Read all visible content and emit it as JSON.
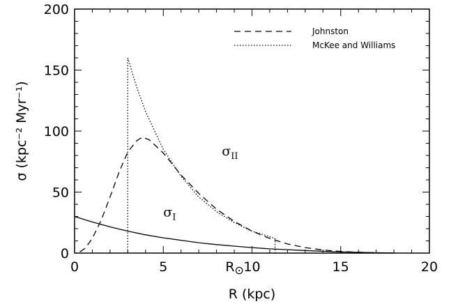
{
  "chart_data": {
    "type": "line",
    "xlabel": "R (kpc)",
    "ylabel": "σ (kpc⁻² Myr⁻¹)",
    "xlim": [
      0,
      20
    ],
    "ylim": [
      0,
      200
    ],
    "xticks": [
      "0",
      "5",
      "10",
      "15",
      "20"
    ],
    "yticks": [
      "0",
      "50",
      "100",
      "150",
      "200"
    ],
    "grid": false,
    "legend_position": "top-right",
    "series": [
      {
        "name": "Johnston",
        "style": "dashed",
        "x": [
          0.3,
          0.6,
          1.0,
          1.5,
          2.0,
          2.5,
          3.0,
          3.5,
          3.8,
          4.2,
          5.0,
          6.0,
          7.0,
          8.0,
          9.0,
          10.0,
          11.0,
          12.0,
          13.0,
          14.0,
          15.0,
          16.0,
          17.0,
          18.0
        ],
        "y": [
          1,
          4,
          12,
          27,
          46,
          66,
          83,
          92,
          95,
          93,
          82,
          64,
          49,
          36,
          26,
          18,
          12,
          7.5,
          4.5,
          2.5,
          1.4,
          0.7,
          0.3,
          0.1
        ]
      },
      {
        "name": "McKee and Williams",
        "style": "dotted",
        "x": [
          3.0,
          3.0,
          3.5,
          4.0,
          5.0,
          6.0,
          7.0,
          8.0,
          9.0,
          10.0,
          11.0,
          11.3,
          11.3
        ],
        "y": [
          0,
          160,
          136,
          116,
          85,
          63,
          46,
          34,
          25,
          18,
          13.5,
          12,
          0
        ]
      },
      {
        "style": "solid",
        "x": [
          0,
          1,
          2,
          3,
          4,
          5,
          6,
          7,
          8,
          9,
          10,
          11,
          12,
          13,
          14,
          15,
          16,
          17,
          18
        ],
        "y": [
          30,
          25.5,
          21.5,
          18,
          15,
          12.5,
          10.5,
          8.5,
          7,
          5.7,
          4.5,
          3.5,
          2.8,
          2.1,
          1.5,
          1.0,
          0.6,
          0.3,
          0.1
        ]
      }
    ],
    "legend": [
      {
        "label": "Johnston",
        "style": "dashed"
      },
      {
        "label": "McKee and Williams",
        "style": "dotted"
      }
    ],
    "annotations": {
      "sigma_II": {
        "base": "σ",
        "sub": "II",
        "x": 8.3,
        "y": 80
      },
      "sigma_I": {
        "base": "σ",
        "sub": "I",
        "x": 5.0,
        "y": 30
      },
      "r_sun": {
        "base": "R",
        "sub": "⊙",
        "x": 8.5,
        "y": -16
      }
    }
  }
}
